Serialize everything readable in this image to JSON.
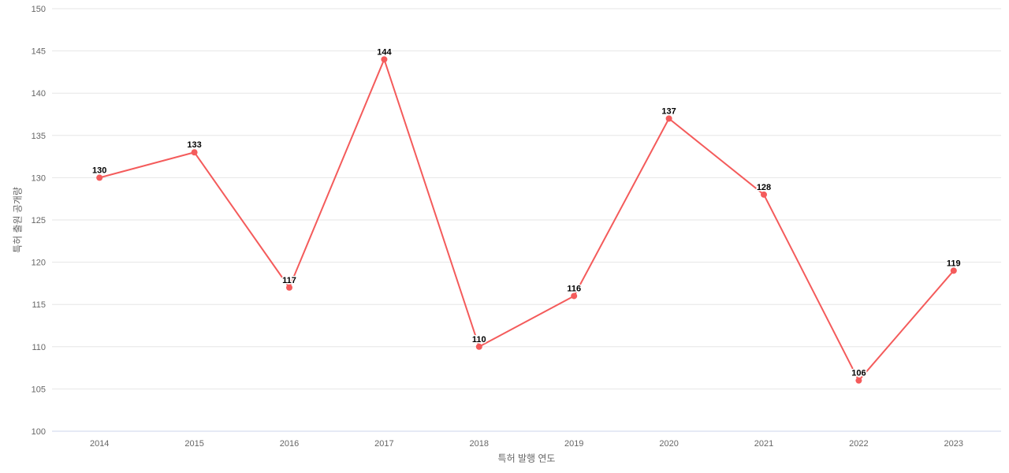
{
  "chart_data": {
    "type": "line",
    "title": "",
    "categories": [
      "2014",
      "2015",
      "2016",
      "2017",
      "2018",
      "2019",
      "2020",
      "2021",
      "2022",
      "2023"
    ],
    "values": [
      130,
      133,
      117,
      144,
      110,
      116,
      137,
      128,
      106,
      119
    ],
    "xlabel": "특허 발행 연도",
    "ylabel": "특허 출원 공개량",
    "ylim": [
      100,
      150
    ],
    "ytick_step": 5,
    "grid": true,
    "legend": false,
    "marker": "circle",
    "colors": {
      "line": "#f45b5b",
      "marker": "#f45b5b",
      "grid_line": "#e6e6e6",
      "axis_line": "#ccd6eb",
      "tick_label": "#666666",
      "axis_title": "#666666",
      "data_label": "#000000",
      "background": "#ffffff"
    }
  }
}
